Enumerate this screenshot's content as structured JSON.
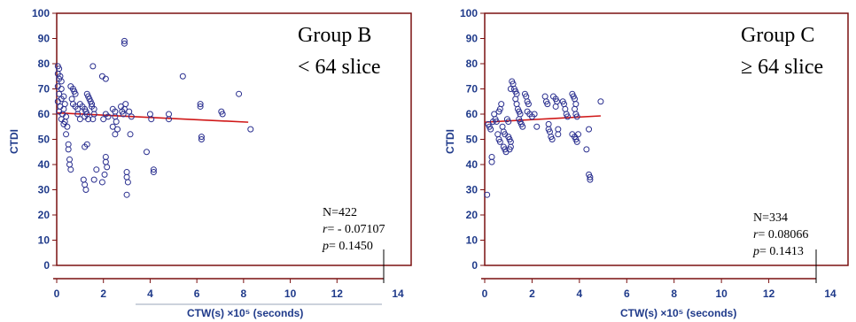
{
  "chart_data": [
    {
      "type": "scatter",
      "title": "Group B",
      "subtitle": "< 64 slice",
      "xlabel": "CTW(s) ×10⁵ (seconds)",
      "ylabel": "CTDI",
      "xlim": [
        0,
        14
      ],
      "ylim": [
        0,
        100
      ],
      "xticks": [
        0,
        2,
        4,
        6,
        8,
        10,
        12,
        14
      ],
      "yticks": [
        0,
        10,
        20,
        30,
        40,
        50,
        60,
        70,
        80,
        90,
        100
      ],
      "stats": {
        "n": "N=422",
        "r_label": "r",
        "r_value": "= - 0.07107",
        "p_label": "p",
        "p_value": "= 0.1450"
      },
      "trend_line": {
        "x": [
          0,
          8.2
        ],
        "y": [
          60.5,
          56.8
        ]
      },
      "points": [
        [
          0.05,
          79
        ],
        [
          0.1,
          78
        ],
        [
          0.05,
          76
        ],
        [
          0.15,
          75
        ],
        [
          0.1,
          74
        ],
        [
          0.2,
          73
        ],
        [
          0.05,
          71
        ],
        [
          0.2,
          70
        ],
        [
          0.1,
          68
        ],
        [
          0.3,
          67
        ],
        [
          0.2,
          66
        ],
        [
          0.05,
          65
        ],
        [
          0.35,
          64
        ],
        [
          0.15,
          63
        ],
        [
          0.3,
          62
        ],
        [
          0.1,
          61
        ],
        [
          0.25,
          60
        ],
        [
          0.4,
          59
        ],
        [
          0.2,
          58
        ],
        [
          0.35,
          57
        ],
        [
          0.3,
          56
        ],
        [
          0.45,
          55
        ],
        [
          0.4,
          52
        ],
        [
          0.5,
          48
        ],
        [
          0.5,
          46
        ],
        [
          0.55,
          42
        ],
        [
          0.55,
          40
        ],
        [
          0.6,
          38
        ],
        [
          0.6,
          71
        ],
        [
          0.7,
          70
        ],
        [
          0.75,
          69
        ],
        [
          0.8,
          68
        ],
        [
          0.65,
          66
        ],
        [
          0.7,
          64
        ],
        [
          0.8,
          63
        ],
        [
          0.9,
          62
        ],
        [
          1.0,
          64
        ],
        [
          0.9,
          60
        ],
        [
          1.0,
          58
        ],
        [
          1.1,
          63
        ],
        [
          1.2,
          62
        ],
        [
          1.25,
          61
        ],
        [
          1.3,
          60
        ],
        [
          1.2,
          59
        ],
        [
          1.35,
          58
        ],
        [
          1.3,
          48
        ],
        [
          1.2,
          47
        ],
        [
          1.15,
          34
        ],
        [
          1.2,
          32
        ],
        [
          1.25,
          30
        ],
        [
          1.3,
          68
        ],
        [
          1.35,
          67
        ],
        [
          1.4,
          66
        ],
        [
          1.45,
          65
        ],
        [
          1.5,
          64
        ],
        [
          1.55,
          79
        ],
        [
          1.5,
          63
        ],
        [
          1.6,
          62
        ],
        [
          1.6,
          60
        ],
        [
          1.55,
          58
        ],
        [
          1.7,
          38
        ],
        [
          1.6,
          34
        ],
        [
          1.95,
          75
        ],
        [
          2.1,
          74
        ],
        [
          2.0,
          58
        ],
        [
          2.1,
          60
        ],
        [
          2.2,
          59
        ],
        [
          2.1,
          43
        ],
        [
          2.1,
          41
        ],
        [
          2.15,
          39
        ],
        [
          2.05,
          36
        ],
        [
          1.95,
          33
        ],
        [
          2.4,
          62
        ],
        [
          2.5,
          61
        ],
        [
          2.5,
          59
        ],
        [
          2.55,
          57
        ],
        [
          2.4,
          55
        ],
        [
          2.6,
          54
        ],
        [
          2.5,
          52
        ],
        [
          2.75,
          63
        ],
        [
          2.8,
          61
        ],
        [
          2.85,
          60
        ],
        [
          2.9,
          62
        ],
        [
          2.95,
          64
        ],
        [
          2.9,
          89
        ],
        [
          2.9,
          88
        ],
        [
          3.0,
          37
        ],
        [
          3.0,
          35
        ],
        [
          3.05,
          33
        ],
        [
          3.0,
          28
        ],
        [
          3.1,
          61
        ],
        [
          3.2,
          59
        ],
        [
          3.15,
          52
        ],
        [
          3.85,
          45
        ],
        [
          4.0,
          60
        ],
        [
          4.05,
          58
        ],
        [
          4.15,
          38
        ],
        [
          4.15,
          37
        ],
        [
          4.8,
          60
        ],
        [
          4.8,
          58
        ],
        [
          5.4,
          75
        ],
        [
          6.15,
          64
        ],
        [
          6.15,
          63
        ],
        [
          6.2,
          51
        ],
        [
          6.2,
          50
        ],
        [
          7.05,
          61
        ],
        [
          7.1,
          60
        ],
        [
          7.8,
          68
        ],
        [
          8.3,
          54
        ]
      ]
    },
    {
      "type": "scatter",
      "title": "Group C",
      "subtitle": "≥ 64 slice",
      "xlabel": "CTW(s) ×10⁵ (seconds)",
      "ylabel": "CTDI",
      "xlim": [
        0,
        14
      ],
      "ylim": [
        0,
        100
      ],
      "xticks": [
        0,
        2,
        4,
        6,
        8,
        10,
        12,
        14
      ],
      "yticks": [
        0,
        10,
        20,
        30,
        40,
        50,
        60,
        70,
        80,
        90,
        100
      ],
      "stats": {
        "n": "N=334",
        "r_label": "r",
        "r_value": "= 0.08066",
        "p_label": "p",
        "p_value": "= 0.1413"
      },
      "trend_line": {
        "x": [
          0,
          4.9
        ],
        "y": [
          56.8,
          59.3
        ]
      },
      "points": [
        [
          0.1,
          28
        ],
        [
          0.15,
          56
        ],
        [
          0.2,
          55
        ],
        [
          0.25,
          54
        ],
        [
          0.3,
          43
        ],
        [
          0.3,
          41
        ],
        [
          0.35,
          57
        ],
        [
          0.4,
          60
        ],
        [
          0.45,
          58
        ],
        [
          0.5,
          57
        ],
        [
          0.55,
          52
        ],
        [
          0.6,
          50
        ],
        [
          0.65,
          49
        ],
        [
          0.6,
          61
        ],
        [
          0.65,
          62
        ],
        [
          0.7,
          64
        ],
        [
          0.75,
          55
        ],
        [
          0.8,
          53
        ],
        [
          0.85,
          52
        ],
        [
          0.8,
          47
        ],
        [
          0.85,
          46
        ],
        [
          0.9,
          45
        ],
        [
          0.95,
          58
        ],
        [
          1.0,
          57
        ],
        [
          1.0,
          51
        ],
        [
          1.05,
          50
        ],
        [
          1.1,
          49
        ],
        [
          1.05,
          46
        ],
        [
          1.1,
          47
        ],
        [
          1.1,
          70
        ],
        [
          1.15,
          73
        ],
        [
          1.2,
          72
        ],
        [
          1.25,
          70
        ],
        [
          1.3,
          69
        ],
        [
          1.35,
          68
        ],
        [
          1.3,
          66
        ],
        [
          1.35,
          64
        ],
        [
          1.4,
          62
        ],
        [
          1.45,
          61
        ],
        [
          1.5,
          60
        ],
        [
          1.45,
          58
        ],
        [
          1.5,
          57
        ],
        [
          1.55,
          56
        ],
        [
          1.6,
          55
        ],
        [
          1.7,
          68
        ],
        [
          1.75,
          67
        ],
        [
          1.8,
          65
        ],
        [
          1.85,
          64
        ],
        [
          1.8,
          61
        ],
        [
          1.9,
          60
        ],
        [
          2.0,
          59
        ],
        [
          2.1,
          60
        ],
        [
          2.2,
          55
        ],
        [
          2.55,
          67
        ],
        [
          2.6,
          65
        ],
        [
          2.65,
          64
        ],
        [
          2.7,
          56
        ],
        [
          2.7,
          54
        ],
        [
          2.75,
          53
        ],
        [
          2.8,
          51
        ],
        [
          2.85,
          50
        ],
        [
          2.9,
          67
        ],
        [
          3.0,
          66
        ],
        [
          3.05,
          65
        ],
        [
          3.0,
          63
        ],
        [
          3.1,
          54
        ],
        [
          3.1,
          52
        ],
        [
          3.3,
          65
        ],
        [
          3.35,
          64
        ],
        [
          3.4,
          62
        ],
        [
          3.45,
          60
        ],
        [
          3.5,
          59
        ],
        [
          3.7,
          68
        ],
        [
          3.75,
          67
        ],
        [
          3.8,
          66
        ],
        [
          3.85,
          64
        ],
        [
          3.8,
          62
        ],
        [
          3.85,
          60
        ],
        [
          3.9,
          59
        ],
        [
          3.7,
          52
        ],
        [
          3.8,
          51
        ],
        [
          3.85,
          50
        ],
        [
          3.9,
          49
        ],
        [
          3.95,
          52
        ],
        [
          4.3,
          46
        ],
        [
          4.4,
          54
        ],
        [
          4.4,
          36
        ],
        [
          4.45,
          35
        ],
        [
          4.45,
          34
        ],
        [
          4.9,
          65
        ]
      ]
    }
  ]
}
